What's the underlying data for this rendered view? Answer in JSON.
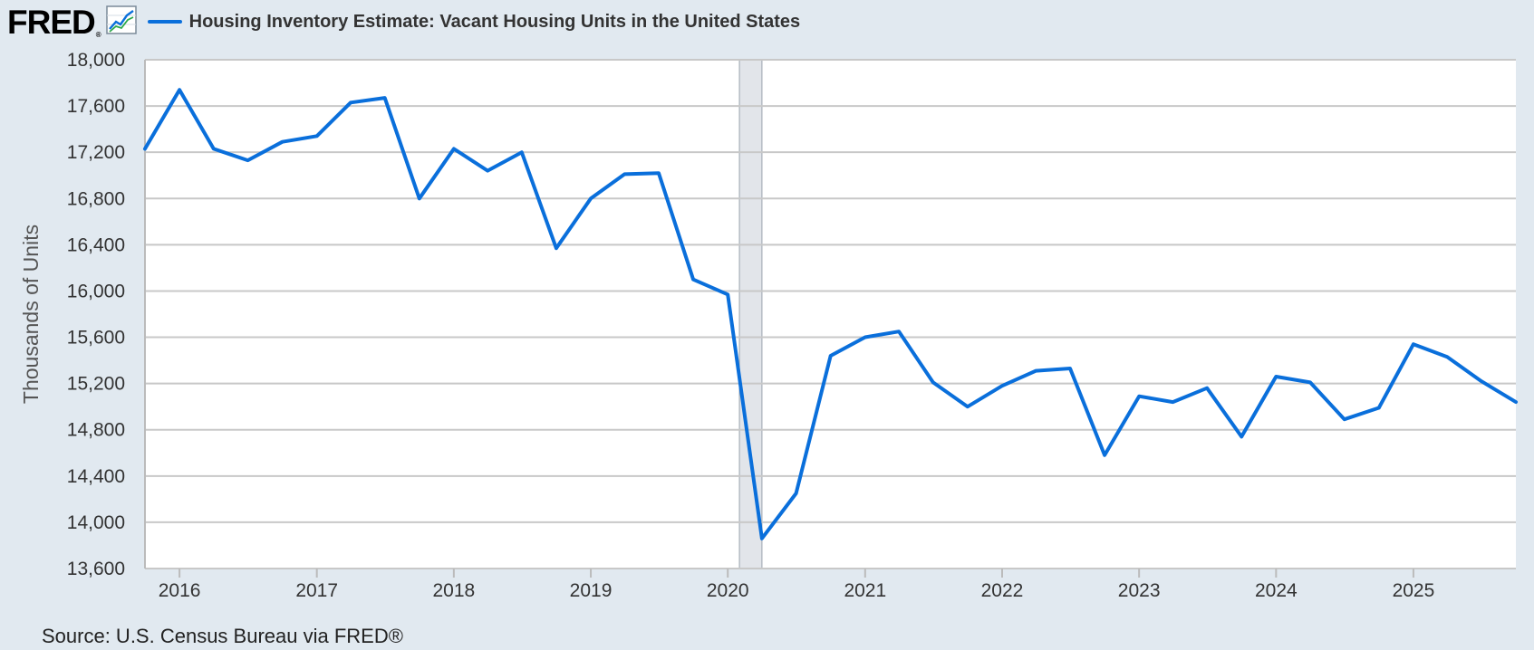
{
  "header": {
    "logo_text": "FRED",
    "logo_mark": "®",
    "logo_icon": "line-chart-icon",
    "series_title": "Housing Inventory Estimate: Vacant Housing Units in the United States"
  },
  "source": "Source: U.S. Census Bureau via FRED®",
  "colors": {
    "background": "#e1e9f0",
    "plot_background": "#ffffff",
    "line": "#0a6fdb",
    "grid": "#c8c8c8",
    "recession": "#e2e5ea"
  },
  "chart_data": {
    "type": "line",
    "title": "Housing Inventory Estimate: Vacant Housing Units in the United States",
    "xlabel": "",
    "ylabel": "Thousands of Units",
    "ylim": [
      13600,
      18000
    ],
    "xlim": [
      "2015-10-01",
      "2025-10-01"
    ],
    "yticks": [
      "13,600",
      "14,000",
      "14,400",
      "14,800",
      "15,200",
      "15,600",
      "16,000",
      "16,400",
      "16,800",
      "17,200",
      "17,600",
      "18,000"
    ],
    "ytick_values": [
      13600,
      14000,
      14400,
      14800,
      15200,
      15600,
      16000,
      16400,
      16800,
      17200,
      17600,
      18000
    ],
    "xticks": [
      "2016",
      "2017",
      "2018",
      "2019",
      "2020",
      "2021",
      "2022",
      "2023",
      "2024",
      "2025"
    ],
    "xtick_dates": [
      "2016-01-01",
      "2017-01-01",
      "2018-01-01",
      "2019-01-01",
      "2020-01-01",
      "2021-01-01",
      "2022-01-01",
      "2023-01-01",
      "2024-01-01",
      "2025-01-01"
    ],
    "grid": true,
    "legend": "top-left",
    "recession": {
      "start": "2020-02-01",
      "end": "2020-04-01"
    },
    "series": [
      {
        "name": "Housing Inventory Estimate: Vacant Housing Units in the United States",
        "x": [
          "2015-10-01",
          "2016-01-01",
          "2016-04-01",
          "2016-07-01",
          "2016-10-01",
          "2017-01-01",
          "2017-04-01",
          "2017-07-01",
          "2017-10-01",
          "2018-01-01",
          "2018-04-01",
          "2018-07-01",
          "2018-10-01",
          "2019-01-01",
          "2019-04-01",
          "2019-07-01",
          "2019-10-01",
          "2020-01-01",
          "2020-04-01",
          "2020-07-01",
          "2020-10-01",
          "2021-01-01",
          "2021-04-01",
          "2021-07-01",
          "2021-10-01",
          "2022-01-01",
          "2022-04-01",
          "2022-07-01",
          "2022-10-01",
          "2023-01-01",
          "2023-04-01",
          "2023-07-01",
          "2023-10-01",
          "2024-01-01",
          "2024-04-01",
          "2024-07-01",
          "2024-10-01",
          "2025-01-01",
          "2025-04-01",
          "2025-07-01",
          "2025-10-01"
        ],
        "values": [
          17230,
          17740,
          17230,
          17130,
          17290,
          17340,
          17630,
          17670,
          16800,
          17230,
          17040,
          17200,
          16370,
          16800,
          17010,
          17020,
          16100,
          15970,
          13860,
          14250,
          15440,
          15600,
          15650,
          15210,
          15000,
          15180,
          15310,
          15330,
          14580,
          15090,
          15040,
          15160,
          14740,
          15260,
          15210,
          14890,
          14990,
          15540,
          15430,
          15220,
          15040
        ]
      }
    ]
  }
}
